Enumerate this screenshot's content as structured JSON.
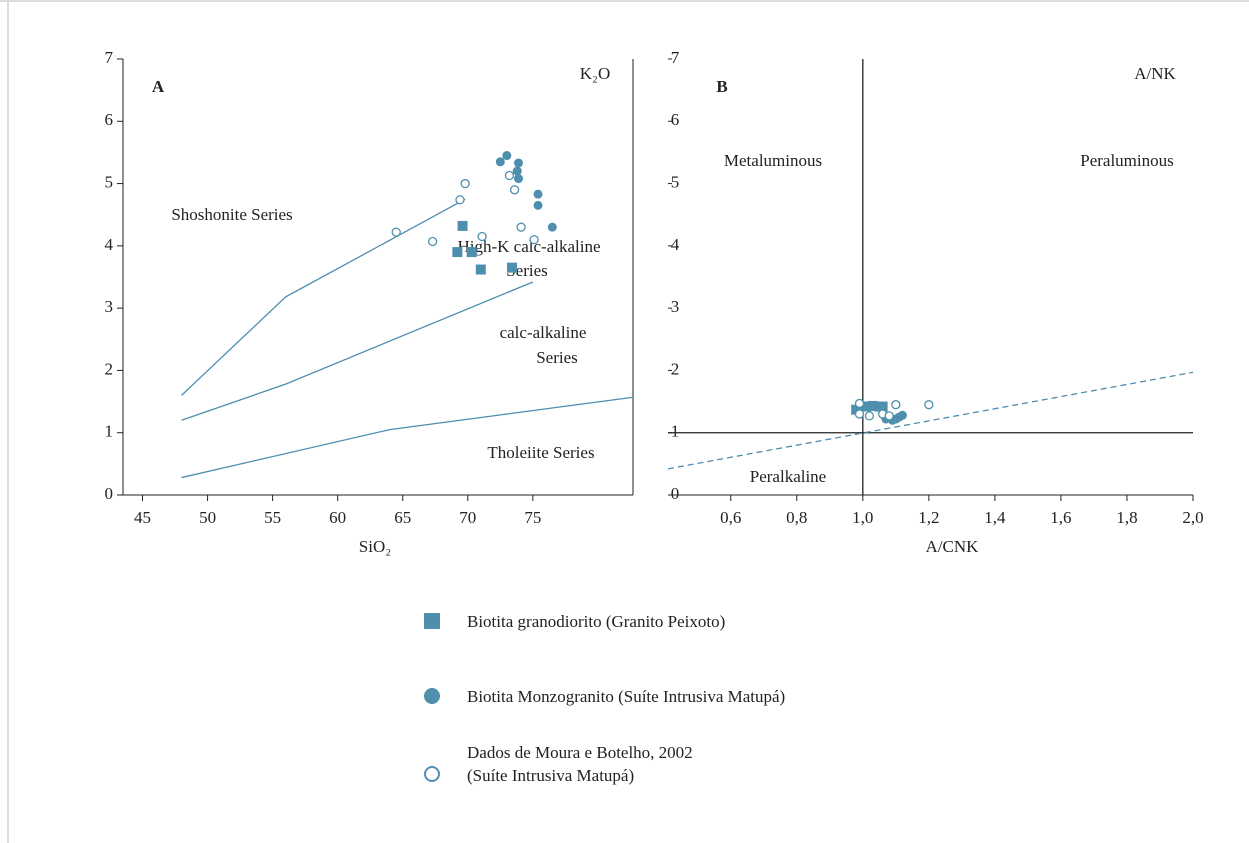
{
  "chart_data": [
    {
      "type": "scatter",
      "annotations": [
        "A",
        "K₂O",
        "Shoshonite Series",
        "High-K calc-alkaline",
        "Series",
        "calc-alkaline",
        "Series",
        "Tholeiite Series"
      ],
      "xlabel": "SiO₂",
      "xlim": [
        43.5,
        82.7
      ],
      "ylim": [
        0,
        7
      ],
      "xticks": [
        45,
        50,
        55,
        60,
        65,
        70,
        75
      ],
      "yticks": [
        0,
        1,
        2,
        3,
        4,
        5,
        6,
        7
      ],
      "line_color": "#4d8db0",
      "lines": [
        {
          "x": [
            48,
            56,
            69.8
          ],
          "y": [
            1.6,
            3.18,
            4.75
          ]
        },
        {
          "x": [
            48,
            56,
            75
          ],
          "y": [
            1.2,
            1.78,
            3.42
          ]
        },
        {
          "x": [
            48,
            64,
            82.7
          ],
          "y": [
            0.28,
            1.05,
            1.57
          ]
        }
      ],
      "series": [
        {
          "name": "Biotita granodiorito (Granito Peixoto)",
          "marker": "square",
          "color": "#4f8fae",
          "x": [
            69.6,
            69.2,
            70.3,
            71.0,
            73.4
          ],
          "y": [
            4.32,
            3.9,
            3.9,
            3.62,
            3.65
          ]
        },
        {
          "name": "Biotita Monzogranito (Suíte Intrusiva Matupá)",
          "marker": "circle",
          "color": "#4f8fae",
          "x": [
            72.5,
            73.0,
            73.9,
            73.8,
            73.9,
            75.4,
            75.4,
            76.5
          ],
          "y": [
            5.35,
            5.45,
            5.33,
            5.2,
            5.08,
            4.83,
            4.65,
            4.3
          ]
        },
        {
          "name": "Dados de Moura e Botelho, 2002\n(Suíte Intrusiva Matupá)",
          "marker": "open-circle",
          "color": "#4f8fae",
          "x": [
            64.5,
            67.3,
            69.4,
            69.8,
            71.1,
            73.2,
            73.6,
            74.1,
            75.1
          ],
          "y": [
            4.22,
            4.07,
            4.74,
            5.0,
            4.15,
            5.13,
            4.9,
            4.3,
            4.1
          ]
        }
      ]
    },
    {
      "type": "scatter",
      "annotations": [
        "B",
        "A/NK",
        "Metaluminous",
        "Peraluminous",
        "Peralkaline"
      ],
      "xlabel": "A/CNK",
      "xlim": [
        0.41,
        2.0
      ],
      "ylim": [
        0,
        7
      ],
      "xticks": [
        {
          "value": 0.6,
          "label": "0,6"
        },
        {
          "value": 0.8,
          "label": "0,8"
        },
        {
          "value": 1.0,
          "label": "1,0"
        },
        {
          "value": 1.2,
          "label": "1,2"
        },
        {
          "value": 1.4,
          "label": "1,4"
        },
        {
          "value": 1.6,
          "label": "1,6"
        },
        {
          "value": 1.8,
          "label": "1,8"
        },
        {
          "value": 2.0,
          "label": "2,0"
        }
      ],
      "yticks": [
        0,
        1,
        2,
        3,
        4,
        5,
        6,
        7
      ],
      "line_color": "#222222",
      "lines": [
        {
          "x": [
            1,
            1
          ],
          "y": [
            0,
            7
          ]
        },
        {
          "x": [
            0.41,
            2.0
          ],
          "y": [
            1,
            1
          ]
        },
        {
          "x": [
            0.41,
            2.0
          ],
          "y": [
            0.42,
            1.97
          ],
          "dash": true,
          "color": "#4d8db0"
        }
      ],
      "series": [
        {
          "marker": "square",
          "color": "#4f8fae",
          "x": [
            0.98,
            1.01,
            1.03,
            1.05,
            1.06
          ],
          "y": [
            1.37,
            1.42,
            1.43,
            1.42,
            1.42
          ]
        },
        {
          "marker": "circle",
          "color": "#4f8fae",
          "x": [
            1.07,
            1.09,
            1.1,
            1.11,
            1.12
          ],
          "y": [
            1.22,
            1.2,
            1.22,
            1.25,
            1.28
          ]
        },
        {
          "marker": "open-circle",
          "color": "#4f8fae",
          "x": [
            0.99,
            0.99,
            1.02,
            1.06,
            1.1,
            1.2,
            1.08
          ],
          "y": [
            1.47,
            1.3,
            1.27,
            1.3,
            1.45,
            1.45,
            1.27
          ]
        }
      ]
    }
  ]
}
